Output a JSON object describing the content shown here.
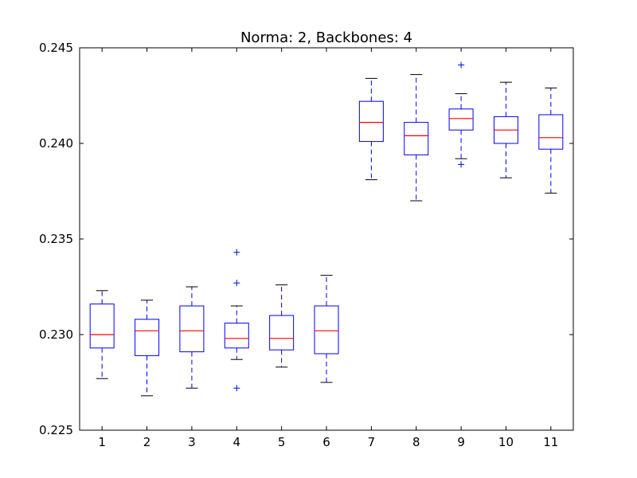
{
  "chart_data": {
    "type": "box",
    "title": "Norma: 2, Backbones: 4",
    "xlabel": "",
    "ylabel": "",
    "ylim": [
      0.225,
      0.245
    ],
    "yticks": [
      0.225,
      0.23,
      0.235,
      0.24,
      0.245
    ],
    "ytick_labels": [
      "0.225",
      "0.230",
      "0.235",
      "0.240",
      "0.245"
    ],
    "categories": [
      "1",
      "2",
      "3",
      "4",
      "5",
      "6",
      "7",
      "8",
      "9",
      "10",
      "11"
    ],
    "boxes": [
      {
        "category": "1",
        "whisker_low": 0.2277,
        "q1": 0.2293,
        "median": 0.23,
        "q3": 0.2316,
        "whisker_high": 0.2323,
        "outliers": []
      },
      {
        "category": "2",
        "whisker_low": 0.2268,
        "q1": 0.2289,
        "median": 0.2302,
        "q3": 0.2308,
        "whisker_high": 0.2318,
        "outliers": []
      },
      {
        "category": "3",
        "whisker_low": 0.2272,
        "q1": 0.2291,
        "median": 0.2302,
        "q3": 0.2315,
        "whisker_high": 0.2325,
        "outliers": []
      },
      {
        "category": "4",
        "whisker_low": 0.2287,
        "q1": 0.2293,
        "median": 0.2298,
        "q3": 0.2306,
        "whisker_high": 0.2315,
        "outliers": [
          0.2343,
          0.2327,
          0.2272
        ]
      },
      {
        "category": "5",
        "whisker_low": 0.2283,
        "q1": 0.2292,
        "median": 0.2298,
        "q3": 0.231,
        "whisker_high": 0.2326,
        "outliers": []
      },
      {
        "category": "6",
        "whisker_low": 0.2275,
        "q1": 0.229,
        "median": 0.2302,
        "q3": 0.2315,
        "whisker_high": 0.2331,
        "outliers": []
      },
      {
        "category": "7",
        "whisker_low": 0.2381,
        "q1": 0.2401,
        "median": 0.2411,
        "q3": 0.2422,
        "whisker_high": 0.2434,
        "outliers": []
      },
      {
        "category": "8",
        "whisker_low": 0.237,
        "q1": 0.2394,
        "median": 0.2404,
        "q3": 0.2411,
        "whisker_high": 0.2436,
        "outliers": []
      },
      {
        "category": "9",
        "whisker_low": 0.2392,
        "q1": 0.2407,
        "median": 0.2413,
        "q3": 0.2418,
        "whisker_high": 0.2426,
        "outliers": [
          0.2441,
          0.2389
        ]
      },
      {
        "category": "10",
        "whisker_low": 0.2382,
        "q1": 0.24,
        "median": 0.2407,
        "q3": 0.2414,
        "whisker_high": 0.2432,
        "outliers": []
      },
      {
        "category": "11",
        "whisker_low": 0.2374,
        "q1": 0.2397,
        "median": 0.2403,
        "q3": 0.2415,
        "whisker_high": 0.2429,
        "outliers": []
      }
    ],
    "colors": {
      "box": "#0000ff",
      "median": "#ff0000",
      "whisker": "#0000ff",
      "cap": "#000000",
      "outlier": "#0000ff",
      "axes": "#000000"
    },
    "grid": false,
    "legend": "none"
  }
}
